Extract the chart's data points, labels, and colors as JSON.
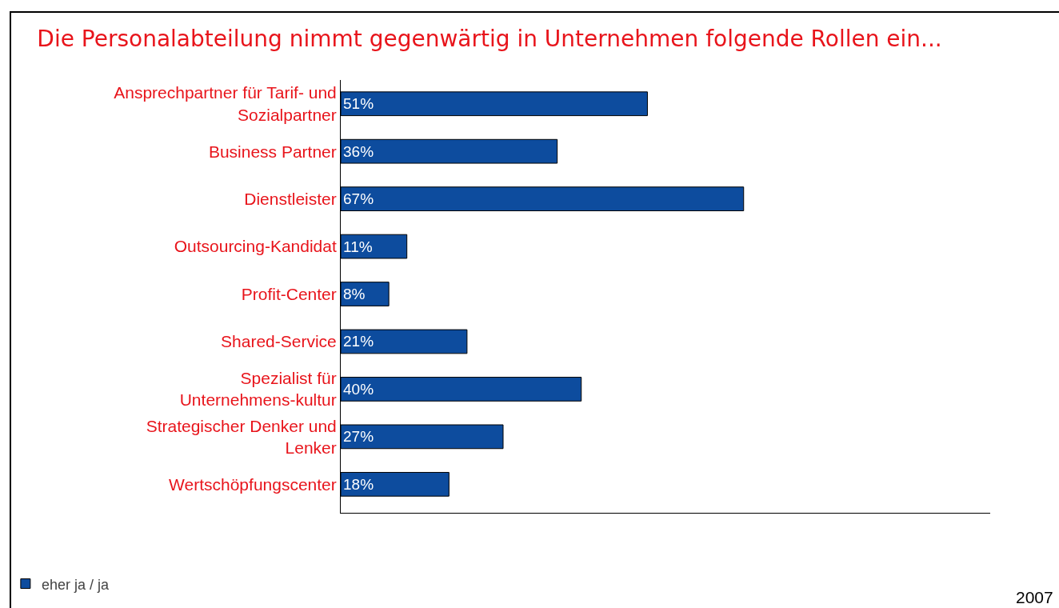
{
  "chart_data": {
    "type": "bar",
    "orientation": "horizontal",
    "title": "Die Personalabteilung nimmt gegenwärtig in Unternehmen folgende Rollen ein...",
    "categories": [
      "Ansprechpartner für Tarif- und Sozialpartner",
      "Business Partner",
      "Dienstleister",
      "Outsourcing-Kandidat",
      "Profit-Center",
      "Shared-Service",
      "Spezialist für Unternehmens-kultur",
      "Strategischer Denker und Lenker",
      "Wertschöpfungscenter"
    ],
    "series": [
      {
        "name": "eher ja / ja",
        "color": "#0d4c9e",
        "values": [
          51,
          36,
          67,
          11,
          8,
          21,
          40,
          27,
          18
        ],
        "value_labels": [
          "51%",
          "36%",
          "67%",
          "11%",
          "8%",
          "21%",
          "40%",
          "27%",
          "18%"
        ]
      }
    ],
    "xlim": [
      0,
      108
    ],
    "grid": false,
    "legend": "bottom left",
    "annotations": [
      "2007"
    ]
  }
}
